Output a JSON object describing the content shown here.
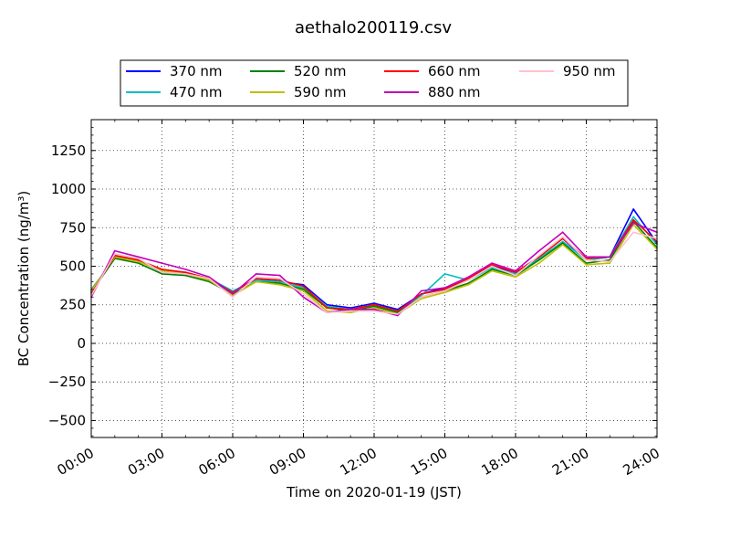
{
  "chart_data": {
    "type": "line",
    "title": "aethalo200119.csv",
    "xlabel": "Time on 2020-01-19 (JST)",
    "ylabel": "BC Concentration (ng/m³)",
    "x_ticks": [
      "00:00",
      "03:00",
      "06:00",
      "09:00",
      "12:00",
      "15:00",
      "18:00",
      "21:00",
      "24:00"
    ],
    "x_range_hours": [
      0,
      24
    ],
    "y_ticks": [
      -500,
      -250,
      0,
      250,
      500,
      750,
      1000,
      1250
    ],
    "ylim": [
      -610,
      1450
    ],
    "grid": true,
    "legend_placement": "top-center, above plot, 4 columns",
    "x_hours": [
      0,
      1,
      2,
      3,
      4,
      5,
      6,
      7,
      8,
      9,
      10,
      11,
      12,
      13,
      14,
      15,
      16,
      17,
      18,
      19,
      20,
      21,
      22,
      23,
      24
    ],
    "series": [
      {
        "name": "370 nm",
        "color": "#0000ff",
        "values": [
          340,
          560,
          540,
          470,
          450,
          410,
          330,
          420,
          400,
          380,
          250,
          230,
          260,
          220,
          320,
          360,
          410,
          500,
          460,
          560,
          680,
          540,
          560,
          870,
          650
        ]
      },
      {
        "name": "470 nm",
        "color": "#00bfbf",
        "values": [
          350,
          550,
          540,
          460,
          460,
          420,
          340,
          410,
          400,
          360,
          240,
          220,
          250,
          210,
          310,
          450,
          410,
          490,
          450,
          550,
          660,
          540,
          560,
          820,
          640
        ]
      },
      {
        "name": "520 nm",
        "color": "#008000",
        "values": [
          330,
          550,
          520,
          450,
          440,
          400,
          320,
          400,
          390,
          350,
          230,
          210,
          240,
          200,
          300,
          340,
          390,
          480,
          440,
          540,
          650,
          520,
          540,
          790,
          620
        ]
      },
      {
        "name": "590 nm",
        "color": "#bfbf00",
        "values": [
          340,
          560,
          530,
          470,
          450,
          410,
          310,
          400,
          380,
          340,
          210,
          200,
          230,
          190,
          290,
          330,
          380,
          470,
          430,
          520,
          640,
          510,
          520,
          770,
          610
        ]
      },
      {
        "name": "660 nm",
        "color": "#ff0000",
        "values": [
          320,
          570,
          540,
          480,
          460,
          420,
          330,
          420,
          410,
          370,
          230,
          220,
          250,
          210,
          320,
          350,
          420,
          510,
          460,
          560,
          680,
          550,
          560,
          800,
          660
        ]
      },
      {
        "name": "880 nm",
        "color": "#bf00bf",
        "values": [
          300,
          600,
          560,
          520,
          480,
          430,
          320,
          450,
          440,
          300,
          200,
          220,
          220,
          180,
          340,
          360,
          430,
          520,
          470,
          600,
          720,
          560,
          560,
          780,
          720
        ]
      },
      {
        "name": "950 nm",
        "color": "#ffc0cb",
        "values": [
          310,
          580,
          550,
          460,
          450,
          420,
          300,
          430,
          420,
          320,
          200,
          210,
          210,
          190,
          300,
          340,
          410,
          500,
          440,
          570,
          690,
          540,
          530,
          720,
          680
        ]
      }
    ]
  }
}
